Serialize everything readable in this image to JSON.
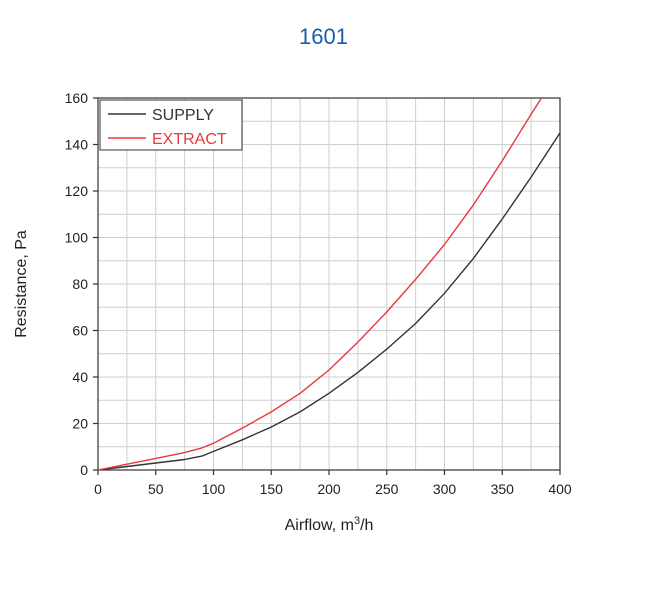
{
  "chart_data": {
    "type": "line",
    "title": "1601",
    "xlabel": "Airflow, m",
    "xlabel_sup": "3",
    "xlabel_suffix": "/h",
    "ylabel": "Resistance, Pa",
    "xlim": [
      0,
      400
    ],
    "ylim": [
      0,
      160
    ],
    "xticks": [
      "0",
      "50",
      "100",
      "150",
      "200",
      "250",
      "300",
      "350",
      "400"
    ],
    "yticks": [
      "0",
      "20",
      "40",
      "60",
      "80",
      "100",
      "120",
      "140",
      "160"
    ],
    "x_minor_step": 25,
    "y_minor_step": 10,
    "grid": true,
    "legend_position": "top-left",
    "series": [
      {
        "name": "SUPPLY",
        "color": "#333333",
        "x": [
          0,
          25,
          50,
          75,
          90,
          100,
          125,
          150,
          175,
          200,
          225,
          250,
          275,
          300,
          325,
          350,
          375,
          400
        ],
        "values": [
          0,
          1.5,
          3,
          4.5,
          6,
          8,
          13,
          18.5,
          25,
          33,
          42,
          52,
          63,
          76,
          91,
          108,
          126,
          145
        ]
      },
      {
        "name": "EXTRACT",
        "color": "#e8383d",
        "x": [
          0,
          25,
          50,
          75,
          90,
          100,
          125,
          150,
          175,
          200,
          225,
          250,
          275,
          300,
          325,
          350,
          375,
          384
        ],
        "values": [
          0,
          2.5,
          5,
          7.5,
          9.5,
          11.5,
          18,
          25,
          33,
          43,
          55,
          68,
          82,
          97,
          114,
          133,
          153,
          160
        ]
      }
    ]
  }
}
